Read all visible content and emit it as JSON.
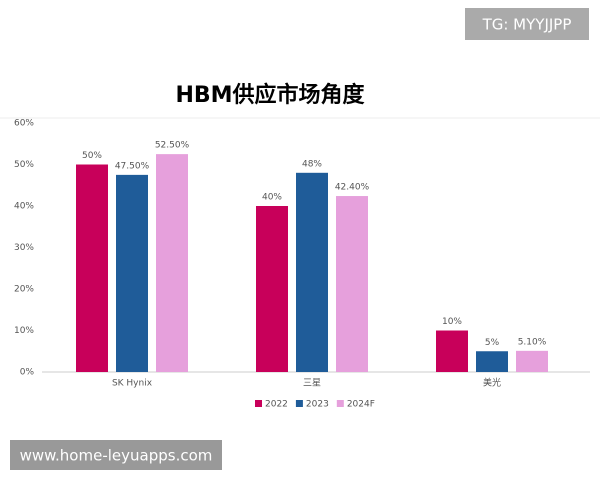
{
  "chart_data": {
    "type": "bar",
    "title": "HBM供应市场角度",
    "categories": [
      "SK Hynix",
      "三星",
      "美光"
    ],
    "series": [
      {
        "name": "2022",
        "color": "#c8005a",
        "values": [
          50,
          40,
          10
        ],
        "value_labels": [
          "50%",
          "40%",
          "10%"
        ]
      },
      {
        "name": "2023",
        "color": "#1f5c99",
        "values": [
          47.5,
          48,
          5
        ],
        "value_labels": [
          "47.50%",
          "48%",
          "5%"
        ]
      },
      {
        "name": "2024F",
        "color": "#e6a0dc",
        "values": [
          52.5,
          42.4,
          5.1
        ],
        "value_labels": [
          "52.50%",
          "42.40%",
          "5.10%"
        ]
      }
    ],
    "ylim": [
      0,
      60
    ],
    "yticks": [
      {
        "value": 0,
        "label": "0%"
      },
      {
        "value": 10,
        "label": "10%"
      },
      {
        "value": 20,
        "label": "20%"
      },
      {
        "value": 30,
        "label": "30%"
      },
      {
        "value": 40,
        "label": "40%"
      },
      {
        "value": 50,
        "label": "50%"
      },
      {
        "value": 60,
        "label": "60%"
      }
    ],
    "grid": false,
    "legend": "bottom"
  },
  "watermarks": [
    "TG: MYYJJPP",
    "www.home-leyuapps.com"
  ]
}
